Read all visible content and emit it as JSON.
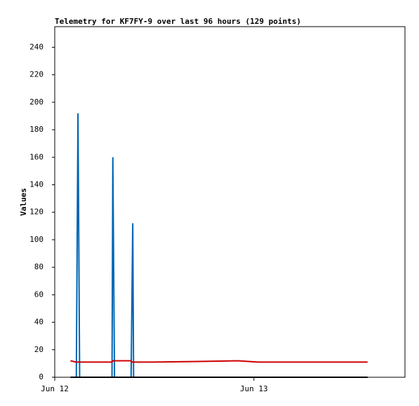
{
  "chart_data": {
    "type": "line",
    "title": "Telemetry for KF7FY-9 over last 96 hours (129 points)",
    "y_label": "Values",
    "x": [
      1.9,
      2.6,
      2.7,
      2.8,
      2.9,
      3.0,
      6.9,
      7.0,
      7.1,
      7.2,
      9.2,
      9.3,
      9.4,
      9.5,
      11.8,
      17.3,
      22.1,
      24.5,
      37.7
    ],
    "series": [
      {
        "color": "#0066b3",
        "values": [
          0,
          0,
          97,
          192,
          97,
          0,
          0,
          160,
          80,
          0,
          0,
          56,
          112,
          0,
          0,
          0,
          0,
          0,
          0
        ]
      },
      {
        "color": "#cc0000",
        "values": [
          12,
          11,
          11,
          11,
          11,
          11,
          11,
          12,
          12,
          12,
          12,
          11,
          11,
          11,
          11,
          11.5,
          12,
          11,
          11
        ]
      },
      {
        "color": "#000000",
        "values": [
          0,
          0,
          0,
          0,
          0,
          0,
          0,
          0,
          0,
          0,
          0,
          0,
          0,
          0,
          0,
          0,
          0,
          0,
          0
        ]
      }
    ],
    "xlim": [
      0,
      42.2
    ],
    "xticks": [
      {
        "value": 0,
        "label": "Jun 12"
      },
      {
        "value": 24,
        "label": "Jun 13"
      }
    ],
    "ylim": [
      0,
      255
    ],
    "yticks": [
      0,
      20,
      40,
      60,
      80,
      100,
      120,
      140,
      160,
      180,
      200,
      220,
      240
    ]
  }
}
